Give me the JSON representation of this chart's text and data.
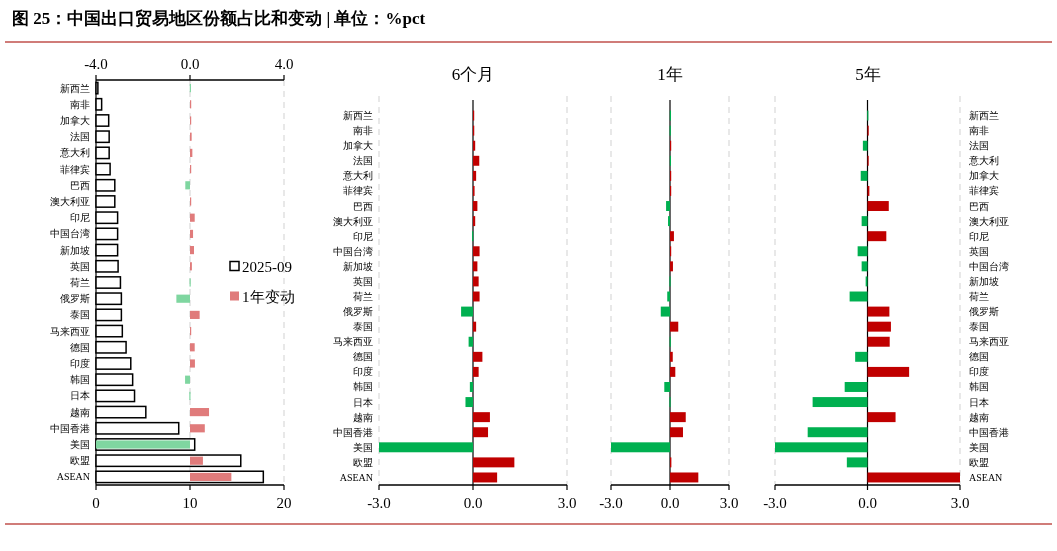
{
  "chart_data": [
    {
      "type": "bar",
      "orientation": "horizontal",
      "title": "图 25：中国出口贸易地区份额占比和变动 | 单位：%pct",
      "categories": [
        "新西兰",
        "南非",
        "加拿大",
        "法国",
        "意大利",
        "菲律宾",
        "巴西",
        "澳大利亚",
        "印尼",
        "中国台湾",
        "新加坡",
        "英国",
        "荷兰",
        "俄罗斯",
        "泰国",
        "马来西亚",
        "德国",
        "印度",
        "韩国",
        "日本",
        "越南",
        "中国香港",
        "美国",
        "欧盟",
        "ASEAN"
      ],
      "series": [
        {
          "name": "2025-09",
          "color": "#ffffff",
          "values": [
            0.2,
            0.6,
            1.35,
            1.4,
            1.4,
            1.5,
            2.0,
            2.0,
            2.3,
            2.3,
            2.3,
            2.35,
            2.6,
            2.7,
            2.7,
            2.8,
            3.2,
            3.7,
            3.9,
            4.1,
            5.3,
            8.8,
            10.5,
            15.4,
            17.8
          ]
        },
        {
          "name": "1年变动",
          "axis": "x2",
          "color": "#e07b7b",
          "colors": [
            "#7fd6a0",
            "#e07b7b",
            "#e07b7b",
            "#e07b7b",
            "#e07b7b",
            "#e07b7b",
            "#7fd6a0",
            "#e07b7b",
            "#e07b7b",
            "#e07b7b",
            "#e07b7b",
            "#e07b7b",
            "#7fd6a0",
            "#7fd6a0",
            "#e07b7b",
            "#e07b7b",
            "#e07b7b",
            "#e07b7b",
            "#7fd6a0",
            "#7fd6a0",
            "#e07b7b",
            "#e07b7b",
            "#7fd6a0",
            "#e07b7b",
            "#e07b7b"
          ],
          "values": [
            -0.01,
            0.01,
            0.01,
            0.07,
            0.1,
            0.05,
            -0.2,
            0.05,
            0.2,
            0.13,
            0.17,
            0.08,
            -0.02,
            -0.58,
            0.41,
            0.02,
            0.2,
            0.21,
            -0.21,
            -0.03,
            0.81,
            0.63,
            -4.0,
            0.55,
            1.76
          ]
        }
      ],
      "xlim": [
        0,
        20
      ],
      "xticks": [
        0,
        10,
        20
      ],
      "x2lim": [
        -4,
        4
      ],
      "x2ticks": [
        {
          "value": -4,
          "label": "-4.0"
        },
        {
          "value": 0,
          "label": "0.0"
        },
        {
          "value": 4,
          "label": "4.0"
        }
      ],
      "grid": "x",
      "legend": "right"
    },
    {
      "type": "bar",
      "orientation": "horizontal",
      "title": "6个月",
      "categories": [
        "新西兰",
        "南非",
        "加拿大",
        "法国",
        "意大利",
        "菲律宾",
        "巴西",
        "澳大利亚",
        "印尼",
        "中国台湾",
        "新加坡",
        "英国",
        "荷兰",
        "俄罗斯",
        "泰国",
        "马来西亚",
        "德国",
        "印度",
        "韩国",
        "日本",
        "越南",
        "中国香港",
        "美国",
        "欧盟",
        "ASEAN"
      ],
      "values": [
        0.0,
        0.04,
        0.07,
        0.2,
        0.1,
        0.05,
        0.14,
        0.07,
        -0.03,
        0.21,
        0.14,
        0.18,
        0.21,
        -0.38,
        0.1,
        -0.14,
        0.3,
        0.18,
        -0.1,
        -0.24,
        0.54,
        0.48,
        -3.0,
        1.32,
        0.77
      ],
      "colors": [
        "#c00000",
        "#c00000",
        "#c00000",
        "#c00000",
        "#c00000",
        "#c00000",
        "#c00000",
        "#c00000",
        "#00b050",
        "#c00000",
        "#c00000",
        "#c00000",
        "#c00000",
        "#00b050",
        "#c00000",
        "#00b050",
        "#c00000",
        "#c00000",
        "#00b050",
        "#00b050",
        "#c00000",
        "#c00000",
        "#00b050",
        "#c00000",
        "#c00000"
      ],
      "xlim": [
        -3,
        3
      ],
      "xticks": [
        {
          "value": -3,
          "label": "-3.0"
        },
        {
          "value": 0,
          "label": "0.0"
        },
        {
          "value": 3,
          "label": "3.0"
        }
      ],
      "grid": "x"
    },
    {
      "type": "bar",
      "orientation": "horizontal",
      "title": "1年",
      "categories": [
        null,
        null,
        null,
        null,
        null,
        null,
        null,
        null,
        null,
        null,
        null,
        null,
        null,
        null,
        null,
        null,
        null,
        null,
        null,
        null,
        null,
        null,
        null,
        null,
        null
      ],
      "values": [
        -0.01,
        -0.02,
        0.05,
        -0.01,
        0.05,
        0.05,
        -0.2,
        -0.1,
        0.2,
        0.05,
        0.15,
        -0.03,
        -0.14,
        -0.47,
        0.42,
        -0.02,
        0.14,
        0.27,
        -0.29,
        -0.03,
        0.8,
        0.66,
        -3.0,
        0.07,
        1.44
      ],
      "colors": [
        "#00b050",
        "#00b050",
        "#c00000",
        "#00b050",
        "#c00000",
        "#c00000",
        "#00b050",
        "#00b050",
        "#c00000",
        "#c00000",
        "#c00000",
        "#00b050",
        "#00b050",
        "#00b050",
        "#c00000",
        "#00b050",
        "#c00000",
        "#c00000",
        "#00b050",
        "#00b050",
        "#c00000",
        "#c00000",
        "#00b050",
        "#c00000",
        "#c00000"
      ],
      "xlim": [
        -3,
        3
      ],
      "xticks": [
        {
          "value": -3,
          "label": "-3.0"
        },
        {
          "value": 0,
          "label": "0.0"
        },
        {
          "value": 3,
          "label": "3.0"
        }
      ],
      "grid": "x"
    },
    {
      "type": "bar",
      "orientation": "horizontal",
      "title": "5年",
      "categories": [
        "新西兰",
        "南非",
        "法国",
        "意大利",
        "加拿大",
        "菲律宾",
        "巴西",
        "澳大利亚",
        "印尼",
        "英国",
        "中国台湾",
        "新加坡",
        "荷兰",
        "俄罗斯",
        "泰国",
        "马来西亚",
        "德国",
        "印度",
        "韩国",
        "日本",
        "越南",
        "中国香港",
        "美国",
        "欧盟",
        "ASEAN"
      ],
      "values": [
        -0.01,
        0.04,
        -0.15,
        0.0,
        -0.22,
        0.06,
        0.69,
        -0.19,
        0.61,
        -0.32,
        -0.19,
        -0.06,
        -0.58,
        0.71,
        0.76,
        0.72,
        -0.4,
        1.35,
        -0.74,
        -1.78,
        0.91,
        -1.94,
        -3.0,
        -0.67,
        3.0
      ],
      "colors": [
        "#00b050",
        "#c00000",
        "#00b050",
        "#c00000",
        "#00b050",
        "#c00000",
        "#c00000",
        "#00b050",
        "#c00000",
        "#00b050",
        "#00b050",
        "#00b050",
        "#00b050",
        "#c00000",
        "#c00000",
        "#c00000",
        "#00b050",
        "#c00000",
        "#00b050",
        "#00b050",
        "#c00000",
        "#00b050",
        "#00b050",
        "#00b050",
        "#c00000"
      ],
      "xlim": [
        -3,
        3
      ],
      "xticks": [
        {
          "value": -3,
          "label": "-3.0"
        },
        {
          "value": 0,
          "label": "0.0"
        },
        {
          "value": 3,
          "label": "3.0"
        }
      ],
      "grid": "x"
    }
  ]
}
